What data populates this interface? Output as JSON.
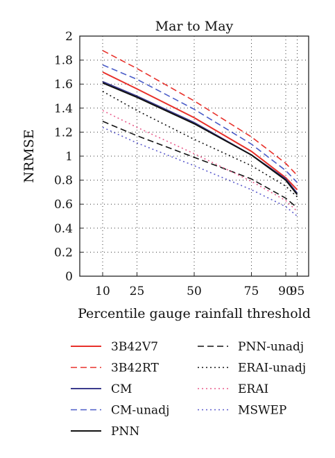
{
  "chart_data": {
    "type": "line",
    "title": "Mar to May",
    "xlabel": "Percentile gauge rainfall threshold",
    "ylabel": "NRMSE",
    "x": [
      10,
      25,
      50,
      75,
      90,
      95
    ],
    "x_ticks": [
      "10",
      "25",
      "50",
      "75",
      "90",
      "95"
    ],
    "xlim": [
      0,
      100
    ],
    "ylim": [
      0,
      2
    ],
    "y_ticks": [
      "0",
      "0.2",
      "0.4",
      "0.6",
      "0.8",
      "1",
      "1.2",
      "1.4",
      "1.6",
      "1.8",
      "2"
    ],
    "grid": true,
    "legend_position": "bottom",
    "series": [
      {
        "name": "3B42V7",
        "color": "#e8302a",
        "style": "solid",
        "values": [
          1.7,
          1.56,
          1.32,
          1.04,
          0.82,
          0.72
        ]
      },
      {
        "name": "3B42RT",
        "color": "#e8302a",
        "style": "dashed",
        "values": [
          1.88,
          1.73,
          1.46,
          1.16,
          0.94,
          0.84
        ]
      },
      {
        "name": "CM",
        "color": "#3a3a8c",
        "style": "solid",
        "values": [
          1.62,
          1.5,
          1.28,
          1.01,
          0.81,
          0.69
        ]
      },
      {
        "name": "CM-unadj",
        "color": "#4a5cc8",
        "style": "dashed",
        "values": [
          1.76,
          1.64,
          1.39,
          1.1,
          0.88,
          0.78
        ]
      },
      {
        "name": "PNN",
        "color": "#111111",
        "style": "solid",
        "values": [
          1.61,
          1.49,
          1.27,
          1.01,
          0.8,
          0.68
        ]
      },
      {
        "name": "PNN-unadj",
        "color": "#111111",
        "style": "dashed",
        "values": [
          1.29,
          1.17,
          0.99,
          0.81,
          0.65,
          0.57
        ]
      },
      {
        "name": "ERAI-unadj",
        "color": "#111111",
        "style": "dotted",
        "values": [
          1.54,
          1.38,
          1.14,
          0.92,
          0.75,
          0.66
        ]
      },
      {
        "name": "ERAI",
        "color": "#e85a8a",
        "style": "dotted",
        "values": [
          1.38,
          1.24,
          1.02,
          0.79,
          0.63,
          0.54
        ]
      },
      {
        "name": "MSWEP",
        "color": "#5a5acc",
        "style": "dotted",
        "values": [
          1.24,
          1.11,
          0.92,
          0.72,
          0.58,
          0.5
        ]
      }
    ]
  }
}
